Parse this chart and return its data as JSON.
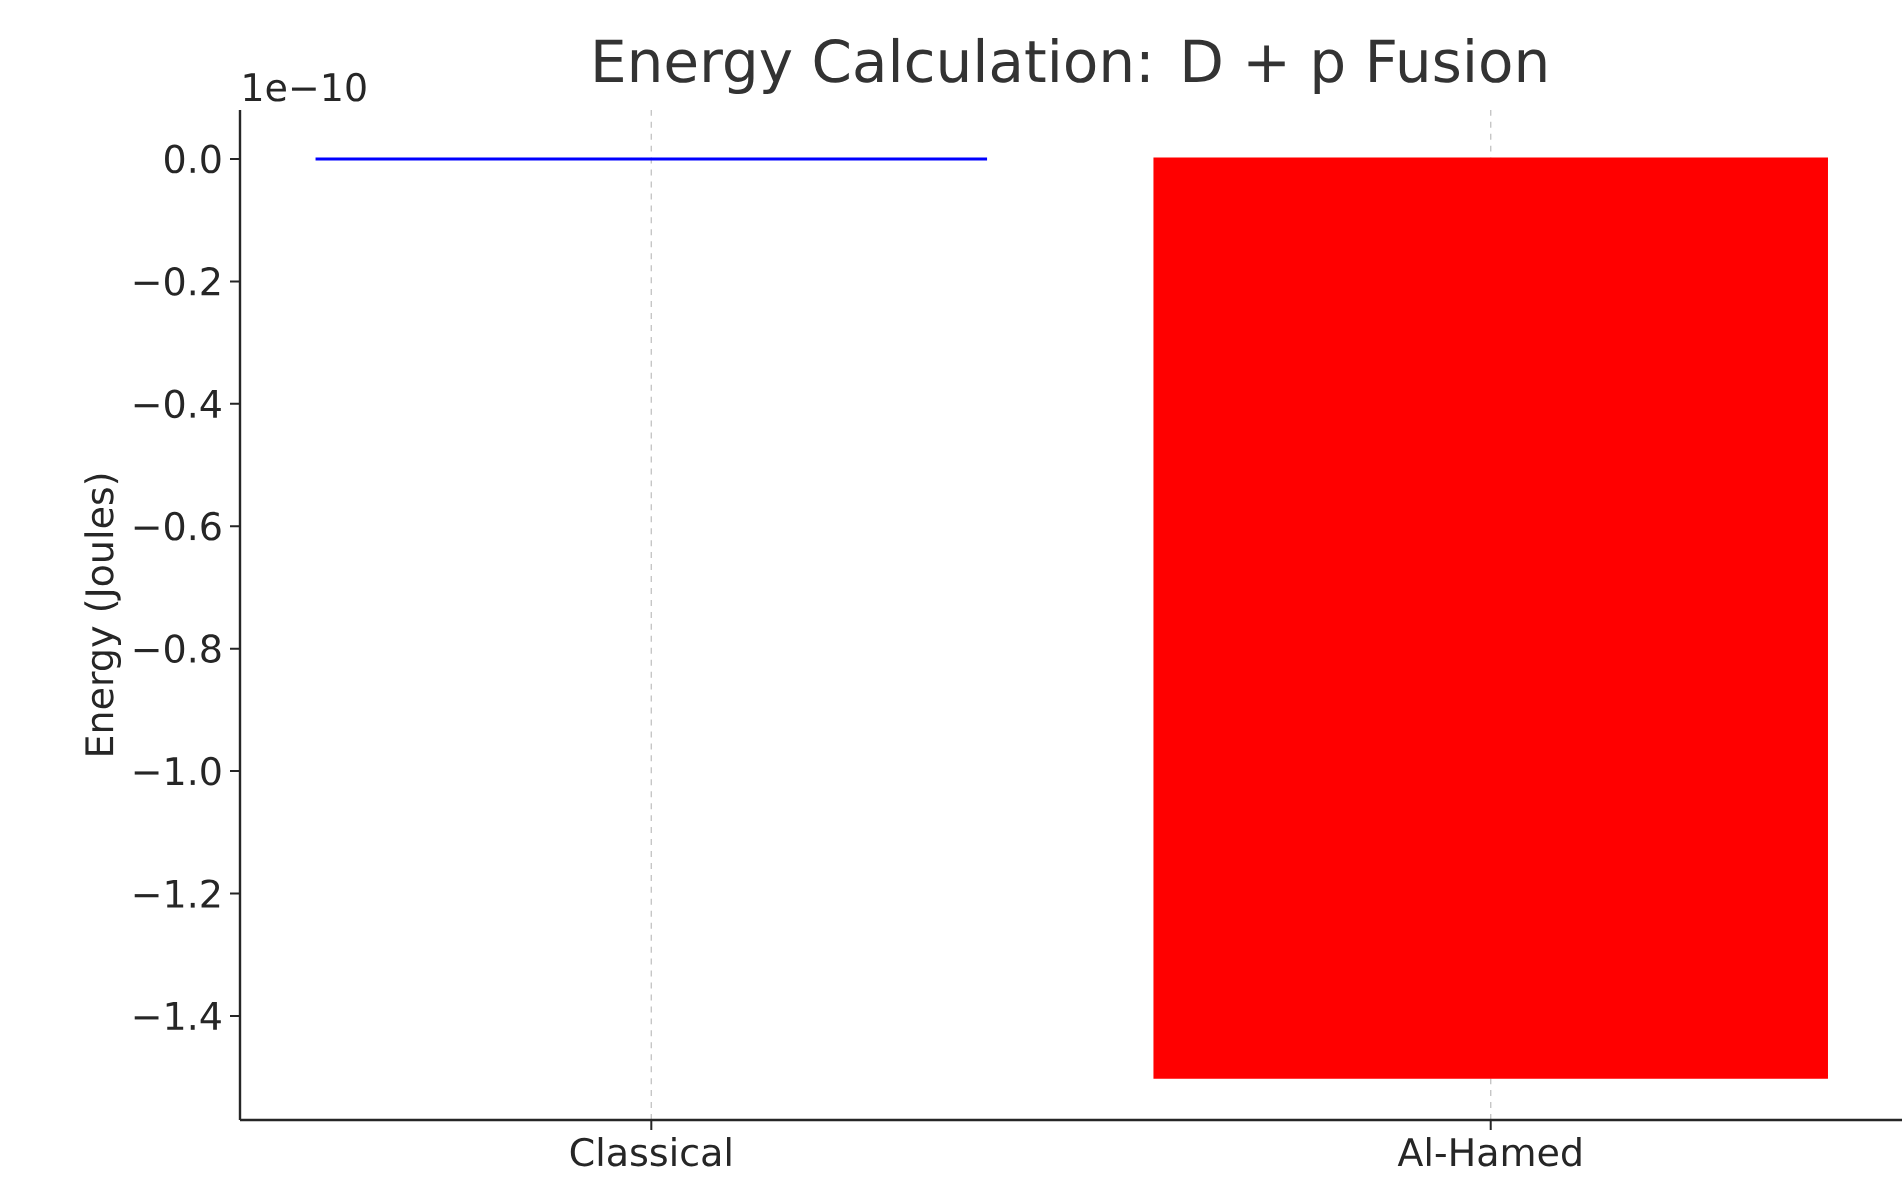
{
  "chart_data": {
    "type": "bar",
    "title": "Energy Calculation: D + p Fusion",
    "ylabel": "Energy (Joules)",
    "categories": [
      "Classical",
      "Al-Hamed"
    ],
    "values": [
      0,
      -1.5
    ],
    "colors": [
      "#0000ff",
      "#ff0000"
    ],
    "ylim": [
      -1.57,
      0.08
    ],
    "yticks": [
      {
        "value": 0,
        "label": "0.0"
      },
      {
        "value": -0.2,
        "label": "−0.2"
      },
      {
        "value": -0.4,
        "label": "−0.4"
      },
      {
        "value": -0.6,
        "label": "−0.6"
      },
      {
        "value": -0.8,
        "label": "−0.8"
      },
      {
        "value": -1.0,
        "label": "−1.0"
      },
      {
        "value": -1.2,
        "label": "−1.2"
      },
      {
        "value": -1.4,
        "label": "−1.4"
      }
    ],
    "grid": "x",
    "annotations": [
      "1e−10"
    ]
  }
}
